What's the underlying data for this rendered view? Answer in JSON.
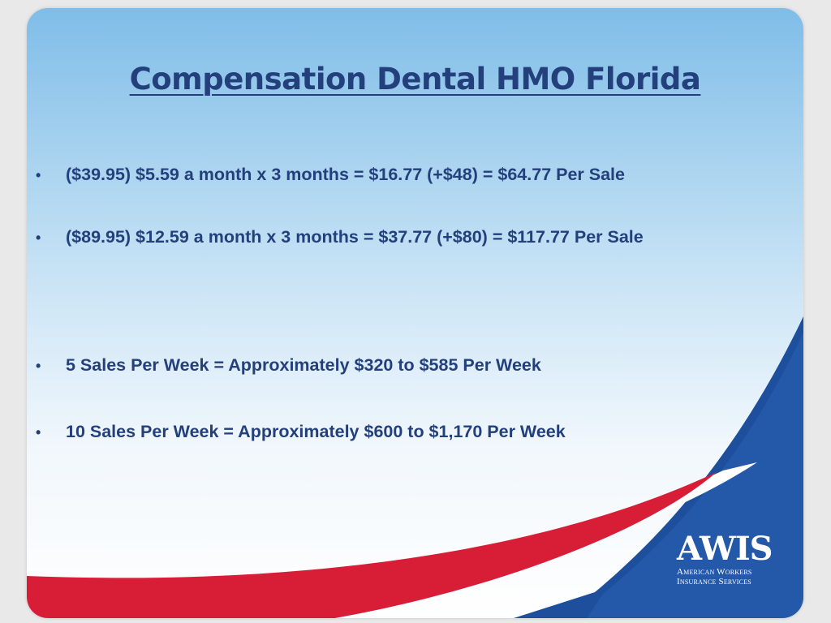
{
  "slide": {
    "title": "Compensation Dental HMO Florida",
    "bullets": [
      "($39.95) $5.59 a month x 3 months = $16.77 (+$48) = $64.77 Per Sale",
      "($89.95) $12.59 a month x 3 months = $37.77 (+$80) = $117.77 Per Sale",
      "5 Sales Per Week = Approximately $320 to $585 Per Week",
      "10 Sales Per Week = Approximately $600 to $1,170 Per Week"
    ],
    "bullet_symbol": "•"
  },
  "logo": {
    "mark": "AWIS",
    "line1": "American Workers",
    "line2": "Insurance Services"
  },
  "colors": {
    "title": "#23407c",
    "wave_red": "#d81e37",
    "wave_blue": "#1d4f9c"
  }
}
